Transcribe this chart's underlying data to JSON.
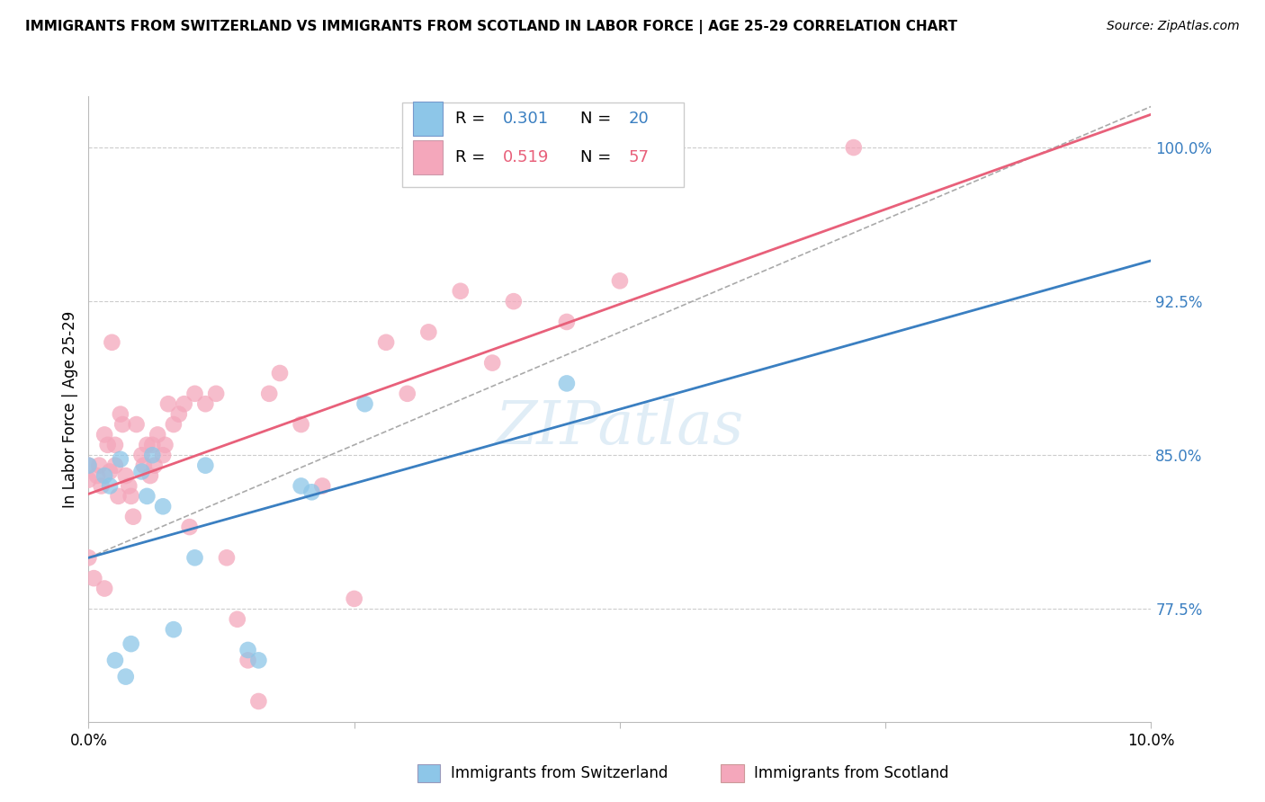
{
  "title": "IMMIGRANTS FROM SWITZERLAND VS IMMIGRANTS FROM SCOTLAND IN LABOR FORCE | AGE 25-29 CORRELATION CHART",
  "source": "Source: ZipAtlas.com",
  "xlabel_switzerland": "Immigrants from Switzerland",
  "xlabel_scotland": "Immigrants from Scotland",
  "ylabel": "In Labor Force | Age 25-29",
  "xlim": [
    0.0,
    10.0
  ],
  "ylim": [
    72.0,
    102.5
  ],
  "yticks": [
    77.5,
    85.0,
    92.5,
    100.0
  ],
  "ytick_labels": [
    "77.5%",
    "85.0%",
    "92.5%",
    "100.0%"
  ],
  "xtick_labels_left": "0.0%",
  "xtick_labels_right": "10.0%",
  "legend_blue_R": "0.301",
  "legend_blue_N": "20",
  "legend_pink_R": "0.519",
  "legend_pink_N": "57",
  "blue_color": "#8dc6e8",
  "pink_color": "#f4a7bb",
  "blue_line_color": "#3a7fc1",
  "pink_line_color": "#e8607a",
  "gray_dash_color": "#aaaaaa",
  "background_color": "#ffffff",
  "watermark_text": "ZIPatlas",
  "switzerland_x": [
    0.0,
    0.15,
    0.2,
    0.25,
    0.3,
    0.35,
    0.4,
    0.5,
    0.55,
    0.6,
    0.7,
    0.8,
    1.0,
    1.1,
    1.5,
    1.6,
    2.0,
    2.1,
    2.6,
    4.5
  ],
  "switzerland_y": [
    84.5,
    84.0,
    83.5,
    75.0,
    84.8,
    74.2,
    75.8,
    84.2,
    83.0,
    85.0,
    82.5,
    76.5,
    80.0,
    84.5,
    75.5,
    75.0,
    83.5,
    83.2,
    87.5,
    88.5
  ],
  "scotland_x": [
    0.0,
    0.0,
    0.0,
    0.05,
    0.08,
    0.1,
    0.12,
    0.15,
    0.15,
    0.18,
    0.2,
    0.22,
    0.25,
    0.25,
    0.28,
    0.3,
    0.32,
    0.35,
    0.38,
    0.4,
    0.42,
    0.45,
    0.5,
    0.52,
    0.55,
    0.58,
    0.6,
    0.62,
    0.65,
    0.7,
    0.72,
    0.75,
    0.8,
    0.85,
    0.9,
    0.95,
    1.0,
    1.1,
    1.2,
    1.3,
    1.4,
    1.5,
    1.6,
    1.7,
    1.8,
    2.0,
    2.2,
    2.5,
    2.8,
    3.0,
    3.2,
    3.5,
    3.8,
    4.0,
    4.5,
    5.0,
    7.2
  ],
  "scotland_y": [
    84.5,
    83.8,
    80.0,
    79.0,
    84.0,
    84.5,
    83.5,
    78.5,
    86.0,
    85.5,
    84.2,
    90.5,
    84.5,
    85.5,
    83.0,
    87.0,
    86.5,
    84.0,
    83.5,
    83.0,
    82.0,
    86.5,
    85.0,
    84.5,
    85.5,
    84.0,
    85.5,
    84.5,
    86.0,
    85.0,
    85.5,
    87.5,
    86.5,
    87.0,
    87.5,
    81.5,
    88.0,
    87.5,
    88.0,
    80.0,
    77.0,
    75.0,
    73.0,
    88.0,
    89.0,
    86.5,
    83.5,
    78.0,
    90.5,
    88.0,
    91.0,
    93.0,
    89.5,
    92.5,
    91.5,
    93.5,
    100.0
  ]
}
